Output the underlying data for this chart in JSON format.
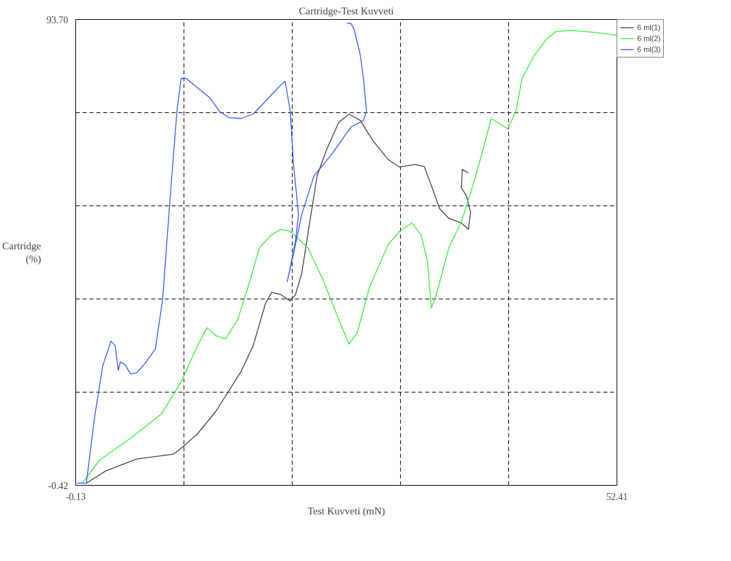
{
  "chart_data": {
    "type": "line",
    "title": "Cartridge-Test Kuvveti",
    "xlabel": "Test Kuvveti (mN)",
    "ylabel": "Cartridge\n(%)",
    "xlim": [
      -0.13,
      52.41
    ],
    "ylim": [
      -0.42,
      93.7
    ],
    "xticks": [
      -0.13,
      {
        "value": 10.378,
        "label": null
      },
      {
        "value": 20.886,
        "label": null
      },
      {
        "value": 31.394,
        "label": null
      },
      {
        "value": 41.902,
        "label": null
      },
      52.41
    ],
    "yticks": [
      -0.42,
      {
        "value": 18.404,
        "label": null
      },
      {
        "value": 37.228,
        "label": null
      },
      {
        "value": 56.052,
        "label": null
      },
      {
        "value": 74.876,
        "label": null
      },
      {
        "value": 93.7,
        "label": "93.70"
      }
    ],
    "grid": true,
    "legend": "top right",
    "marker": "none",
    "line_style": "solid",
    "series": [
      {
        "name": "6 ml(1)",
        "color": "#404040",
        "x": [
          0.9,
          2.8,
          5.8,
          9.4,
          10.3,
          11.7,
          13.5,
          15.9,
          17.1,
          18.3,
          18.9,
          19.8,
          20.7,
          21.2,
          21.8,
          22.7,
          23.3,
          24.2,
          25.4,
          26.4,
          27.5,
          28.7,
          30.2,
          31.3,
          32.8,
          33.7,
          34.3,
          35.2,
          36.1,
          37.3,
          38.0,
          38.2,
          37.8,
          37.3,
          37.4,
          38.0
        ],
        "values": [
          0,
          2.5,
          4.9,
          5.9,
          7.4,
          10,
          14.6,
          22.5,
          27.8,
          36.4,
          38.6,
          38.1,
          36.8,
          38.1,
          42.3,
          54.2,
          62.1,
          67.3,
          72.9,
          74.6,
          73.3,
          69.3,
          65.4,
          63.9,
          64.4,
          64,
          60.7,
          55.5,
          53.5,
          52.6,
          51.3,
          54.8,
          58.1,
          59.7,
          63.4,
          62.7
        ]
      },
      {
        "name": "6 ml(2)",
        "color": "#33ee33",
        "x": [
          0.5,
          2.2,
          5.2,
          8.2,
          10.1,
          11.7,
          12.6,
          13.5,
          14.4,
          15.6,
          16.8,
          17.7,
          18.9,
          19.8,
          20.7,
          22.4,
          23.9,
          25.4,
          26.4,
          27.2,
          28.4,
          30.2,
          31.3,
          32.5,
          33.4,
          34.0,
          34.4,
          34.9,
          36.1,
          37.3,
          38.5,
          39.4,
          40.2,
          41.1,
          41.8,
          42.6,
          43.2,
          44.4,
          45.6,
          46.5,
          48.0,
          50.3,
          52.41
        ],
        "values": [
          0,
          4.7,
          9.1,
          14,
          20.5,
          27.8,
          31.4,
          29.8,
          29.1,
          33.1,
          41,
          47.6,
          50.2,
          51.3,
          50.9,
          47.6,
          41,
          33.1,
          28.1,
          30.4,
          39.7,
          48.2,
          50.9,
          52.6,
          50.2,
          44.9,
          35.4,
          38.3,
          47.6,
          52.8,
          60.7,
          67.3,
          73.7,
          72.6,
          71.6,
          75.2,
          81.8,
          86.5,
          89.8,
          91.3,
          91.5,
          91.1,
          90.5
        ]
      },
      {
        "name": "6 ml(3)",
        "color": "#3355ff",
        "x": [
          0,
          0.9,
          1.7,
          2.5,
          3.3,
          3.7,
          4.0,
          4.2,
          4.6,
          5.2,
          5.8,
          6.7,
          7.6,
          8.3,
          9.1,
          9.7,
          10.1,
          10.6,
          11.7,
          12.9,
          13.8,
          14.7,
          15.9,
          17.1,
          18.3,
          19.5,
          20.2,
          20.7,
          21.0,
          21.5,
          21.2,
          20.7,
          20.4,
          21.0,
          21.8,
          23.0,
          24.8,
          26.6,
          27.8,
          28.1,
          27.8,
          27.5,
          26.9,
          26.6,
          26.2
        ],
        "values": [
          0,
          0,
          13.3,
          23.8,
          28.7,
          27.8,
          22.8,
          24.5,
          24.1,
          22.1,
          22.3,
          24.5,
          27.1,
          37,
          59.4,
          75.2,
          81.8,
          81.8,
          79.9,
          77.9,
          75.2,
          73.9,
          73.7,
          74.6,
          77.2,
          79.9,
          81.2,
          75.2,
          64.7,
          54.2,
          48.9,
          43.6,
          40.7,
          46.2,
          54.2,
          62.1,
          66.7,
          72,
          73.3,
          75.2,
          81.8,
          86.5,
          91.7,
          92.9,
          93
        ]
      }
    ]
  }
}
